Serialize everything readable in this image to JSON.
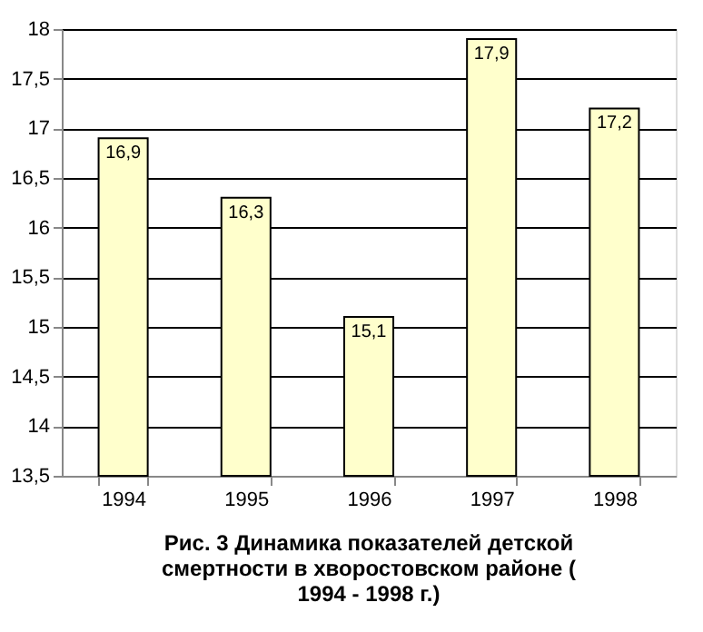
{
  "chart_data": {
    "type": "bar",
    "title": "Рис. 3 Динамика показателей детской смертности в хворостовском районе ( 1994 - 1998 г.)",
    "categories": [
      "1994",
      "1995",
      "1996",
      "1997",
      "1998"
    ],
    "values": [
      16.9,
      16.3,
      15.1,
      17.9,
      17.2
    ],
    "value_labels": [
      "16,9",
      "16,3",
      "15,1",
      "17,9",
      "17,2"
    ],
    "color": "#ffffcc",
    "ylim": [
      13.5,
      18
    ],
    "yticks": [
      {
        "value": 13.5,
        "label": "13,5"
      },
      14,
      {
        "value": 14.5,
        "label": "14,5"
      },
      15,
      {
        "value": 15.5,
        "label": "15,5"
      },
      16,
      {
        "value": 16.5,
        "label": "16,5"
      },
      17,
      {
        "value": 17.5,
        "label": "17,5"
      },
      18
    ],
    "grid": "y"
  }
}
